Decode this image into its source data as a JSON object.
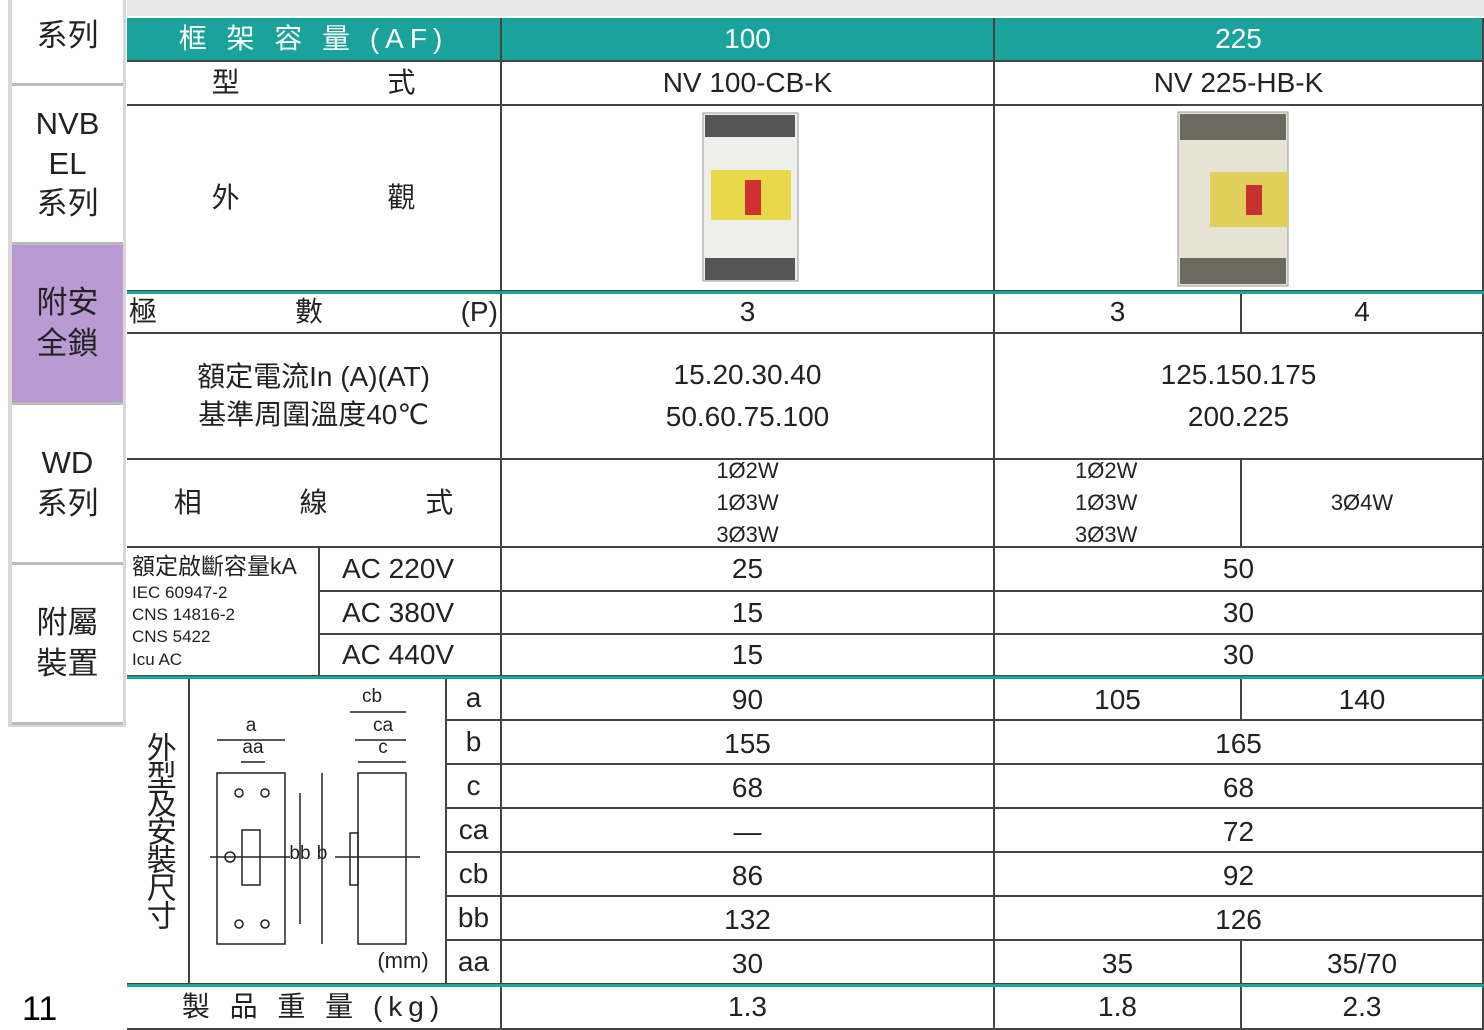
{
  "sidebar": {
    "items": [
      [
        "系列"
      ],
      [
        "NVB",
        "EL",
        "系列"
      ],
      [
        "附安",
        "全鎖"
      ],
      [
        "WD",
        "系列"
      ],
      [
        "附屬",
        "裝置"
      ]
    ]
  },
  "page_number": "11",
  "table": {
    "header": [
      "框 架 容 量 (AF)",
      "100",
      "225"
    ],
    "model": [
      "型 式",
      "NV 100-CB-K",
      "NV 225-HB-K"
    ],
    "appearance": "外 觀",
    "poles": [
      "極 數 (P)",
      "3",
      "3",
      "4"
    ],
    "rated_current": {
      "label": [
        "額定電流In (A)(AT)",
        "基準周圍溫度40℃"
      ],
      "nv100": [
        "15.20.30.40",
        "50.60.75.100"
      ],
      "nv225": [
        "125.150.175",
        "200.225"
      ]
    },
    "phase_wire": {
      "label": "相 線 式",
      "nv100": [
        "1Ø2W",
        "1Ø3W",
        "3Ø3W"
      ],
      "nv225_3p": [
        "1Ø2W",
        "1Ø3W",
        "3Ø3W"
      ],
      "nv225_4p": [
        "3Ø4W"
      ]
    },
    "breaking_capacity": {
      "label": [
        "額定啟斷容量kA",
        "IEC 60947-2",
        "CNS 14816-2",
        "CNS 5422",
        "Icu AC"
      ],
      "rows": [
        [
          "AC 220V",
          "25",
          "50"
        ],
        [
          "AC 380V",
          "15",
          "30"
        ],
        [
          "AC 440V",
          "15",
          "30"
        ]
      ]
    },
    "dimensions": {
      "label": "外型及安裝尺寸",
      "unit": "(mm)",
      "diagram_labels": [
        "cb",
        "a",
        "ca",
        "aa",
        "c",
        "bb",
        "b"
      ],
      "rows": [
        [
          "a",
          "90",
          "105",
          "140"
        ],
        [
          "b",
          "155",
          "165"
        ],
        [
          "c",
          "68",
          "68"
        ],
        [
          "ca",
          "—",
          "72"
        ],
        [
          "cb",
          "86",
          "92"
        ],
        [
          "bb",
          "132",
          "126"
        ],
        [
          "aa",
          "30",
          "35",
          "35/70"
        ]
      ]
    },
    "weight": [
      "製 品 重 量 (kg)",
      "1.3",
      "1.8",
      "2.3"
    ]
  }
}
